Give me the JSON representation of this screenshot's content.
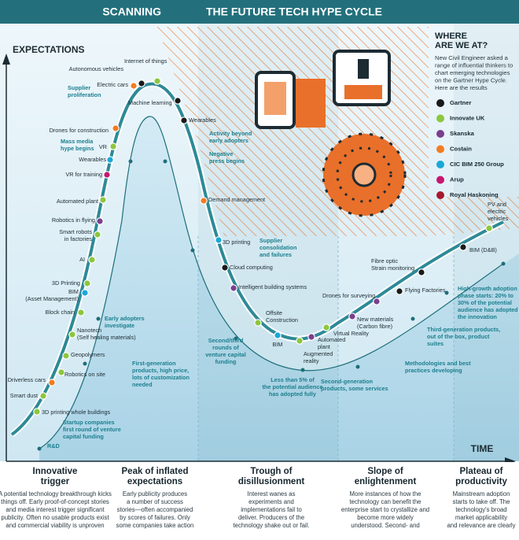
{
  "header": {
    "section": "SCANNING",
    "title": "THE FUTURE TECH HYPE CYCLE"
  },
  "axes": {
    "y": "EXPECTATIONS",
    "x": "TIME"
  },
  "sidebar": {
    "title": [
      "WHERE",
      "ARE WE AT?"
    ],
    "text": [
      "New Civil Engineer asked a",
      "range of influential thinkers to",
      "chart emerging technologies",
      "on the Gartner Hype Cycle.",
      "Here are the results"
    ]
  },
  "legend": [
    {
      "name": "Gartner",
      "color": "#1a1a1a"
    },
    {
      "name": "Innovate UK",
      "color": "#8dc63f"
    },
    {
      "name": "Skanska",
      "color": "#7b3f8e"
    },
    {
      "name": "Costain",
      "color": "#f47b20"
    },
    {
      "name": "CIC BIM 250 Group",
      "color": "#1ba8d8"
    },
    {
      "name": "Arup",
      "color": "#c7166e"
    },
    {
      "name": "Royal Haskoning",
      "color": "#a6192e"
    }
  ],
  "technologies": [
    {
      "label": [
        "Autonomous vehicles"
      ],
      "color": "#1a1a1a"
    },
    {
      "label": [
        "Internet of things"
      ],
      "color": "#8dc63f"
    },
    {
      "label": [
        "Electric cars"
      ],
      "color": "#f47b20"
    },
    {
      "label": [
        "Machine learning"
      ],
      "color": "#1a1a1a"
    },
    {
      "label": [
        "Wearables"
      ],
      "color": "#1a1a1a"
    },
    {
      "label": [
        "Drones for construction"
      ],
      "color": "#f47b20"
    },
    {
      "label": [
        "VR"
      ],
      "color": "#8dc63f"
    },
    {
      "label": [
        "Wearables"
      ],
      "color": "#1ba8d8"
    },
    {
      "label": [
        "VR for training"
      ],
      "color": "#c7166e"
    },
    {
      "label": [
        "Automated plant"
      ],
      "color": "#8dc63f"
    },
    {
      "label": [
        "Robotics in flying"
      ],
      "color": "#7b3f8e"
    },
    {
      "label": [
        "Smart robots",
        "in factories"
      ],
      "color": "#8dc63f"
    },
    {
      "label": [
        "AI"
      ],
      "color": "#8dc63f"
    },
    {
      "label": [
        "3D Printing"
      ],
      "color": "#8dc63f"
    },
    {
      "label": [
        "BIM",
        "(Asset Management)"
      ],
      "color": "#1ba8d8"
    },
    {
      "label": [
        "Block chain"
      ],
      "color": "#8dc63f"
    },
    {
      "label": [
        "Nanotech",
        "(Self healing materials)"
      ],
      "color": "#8dc63f"
    },
    {
      "label": [
        "Geopolymers"
      ],
      "color": "#8dc63f"
    },
    {
      "label": [
        "Robotics on site"
      ],
      "color": "#8dc63f"
    },
    {
      "label": [
        "Driverless cars"
      ],
      "color": "#f47b20"
    },
    {
      "label": [
        "Smart dust"
      ],
      "color": "#8dc63f"
    },
    {
      "label": [
        "3D printing whole buildings"
      ],
      "color": "#8dc63f"
    },
    {
      "label": [
        "Demand management"
      ],
      "color": "#f47b20"
    },
    {
      "label": [
        "3D printing"
      ],
      "color": "#1ba8d8"
    },
    {
      "label": [
        "Cloud computing"
      ],
      "color": "#1a1a1a"
    },
    {
      "label": [
        "Intelligent building systems"
      ],
      "color": "#7b3f8e"
    },
    {
      "label": [
        "Offsite",
        "Construction"
      ],
      "color": "#8dc63f"
    },
    {
      "label": [
        "BIM"
      ],
      "color": "#1ba8d8"
    },
    {
      "label": [
        "Augmented",
        "reality"
      ],
      "color": "#8dc63f"
    },
    {
      "label": [
        "Automated",
        "plant"
      ],
      "color": "#7b3f8e"
    },
    {
      "label": [
        "Virtual Reality"
      ],
      "color": "#8dc63f"
    },
    {
      "label": [
        "New materials",
        "(Carbon fibre)"
      ],
      "color": "#7b3f8e"
    },
    {
      "label": [
        "Drones for surveying"
      ],
      "color": "#7b3f8e"
    },
    {
      "label": [
        "Flying Factories"
      ],
      "color": "#1a1a1a"
    },
    {
      "label": [
        "Fibre optic",
        "Strain monitoring"
      ],
      "color": "#1a1a1a"
    },
    {
      "label": [
        "BIM (D&B)"
      ],
      "color": "#1a1a1a"
    },
    {
      "label": [
        "PV and",
        "electric",
        "vehicles"
      ],
      "color": "#8dc63f"
    }
  ],
  "annotations": [
    [
      "Supplier",
      "proliferation"
    ],
    [
      "Mass media",
      "hype begins"
    ],
    [
      "Activity beyond",
      "early adopters"
    ],
    [
      "Negative",
      "press begins"
    ],
    [
      "Supplier",
      "consolidation",
      "and failures"
    ],
    [
      "Early adopters",
      "investigate"
    ],
    [
      "First-generation",
      "products, high price,",
      "lots of customization",
      "needed"
    ],
    [
      "Startup companies",
      "first round of venture",
      "capital funding"
    ],
    [
      "R&D"
    ],
    [
      "Second/third",
      "rounds of",
      "venture capital",
      "funding"
    ],
    [
      "Less than 5% of",
      "the potential audience",
      "has adopted fully"
    ],
    [
      "Second-generation",
      "products, some services"
    ],
    [
      "Methodologies and best",
      "practices developing"
    ],
    [
      "Third-generation products,",
      "out of the box, product",
      "suites"
    ],
    [
      "High-growth adoption",
      "phase starts: 20% to",
      "30% of the potential",
      "audience has adopted",
      "the innovation"
    ]
  ],
  "phases": [
    {
      "title": [
        "Innovative",
        "trigger"
      ],
      "text": [
        "A potential technology breakthrough kicks",
        "things off. Early proof-of-concept stories",
        "and media interest trigger significant",
        "publicity. Often no usable products exist",
        "and commercial viability is unproven"
      ]
    },
    {
      "title": [
        "Peak of inflated",
        "expectations"
      ],
      "text": [
        "Early publicity produces",
        "a number of success",
        "stories—often accompanied",
        "by scores of failures. Only",
        "some companies take action"
      ]
    },
    {
      "title": [
        "Trough of",
        "disillusionment"
      ],
      "text": [
        "Interest wanes as",
        "experiments and",
        "implementations fail to",
        "deliver. Producers of the",
        "technology shake out or fail."
      ]
    },
    {
      "title": [
        "Slope of",
        "enlightenment"
      ],
      "text": [
        "More instances of how the",
        "technology can benefit the",
        "enterprise start to crystallize and",
        "become more widely",
        "understood. Second- and"
      ]
    },
    {
      "title": [
        "Plateau of",
        "productivity"
      ],
      "text": [
        "Mainstream adoption",
        "starts to take off. The",
        "technology's broad",
        "market applicability",
        "and relevance are clearly"
      ]
    }
  ]
}
